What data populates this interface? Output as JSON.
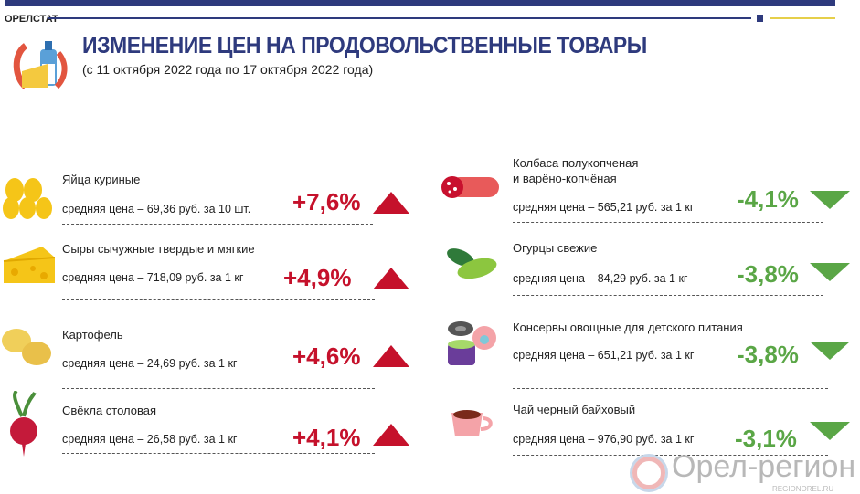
{
  "brand": "ОРЕЛСТАТ",
  "title": "ИЗМЕНЕНИЕ ЦЕН НА ПРОДОВОЛЬСТВЕННЫЕ ТОВАРЫ",
  "subtitle": "(с 11 октября 2022 года по 17 октября 2022 года)",
  "colors": {
    "accent": "#2e3a7d",
    "up": "#c5112b",
    "down": "#5aa646",
    "yellow": "#e6cf4a"
  },
  "left": [
    {
      "name": "Яйца куриные",
      "price": "средняя цена – 69,36 руб. за 10 шт.",
      "change": "+7,6%",
      "icon": "eggs-icon"
    },
    {
      "name": "Сыры сычужные твердые и мягкие",
      "price": "средняя цена – 718,09 руб. за 1 кг",
      "change": "+4,9%",
      "icon": "cheese-icon"
    },
    {
      "name": "Картофель",
      "price": "средняя цена – 24,69 руб. за 1 кг",
      "change": "+4,6%",
      "icon": "potato-icon"
    },
    {
      "name": "Свёкла столовая",
      "price": "средняя цена – 26,58 руб. за 1 кг",
      "change": "+4,1%",
      "icon": "beet-icon"
    }
  ],
  "right": [
    {
      "name": "Колбаса полукопченая",
      "name2": "и варёно-копчёная",
      "price": "средняя цена – 565,21 руб. за 1 кг",
      "change": "-4,1%",
      "icon": "sausage-icon"
    },
    {
      "name": "Огурцы свежие",
      "price": "средняя цена – 84,29 руб. за 1 кг",
      "change": "-3,8%",
      "icon": "cucumber-icon"
    },
    {
      "name": "Консервы овощные для детского питания",
      "price": "средняя цена – 651,21 руб. за 1 кг",
      "change": "-3,8%",
      "icon": "baby-food-icon"
    },
    {
      "name": "Чай черный байховый",
      "price": "средняя цена – 976,90 руб. за 1 кг",
      "change": "-3,1%",
      "icon": "tea-cup-icon"
    }
  ],
  "watermark": {
    "text": "Орел-регион",
    "url": "REGIONOREL.RU"
  }
}
